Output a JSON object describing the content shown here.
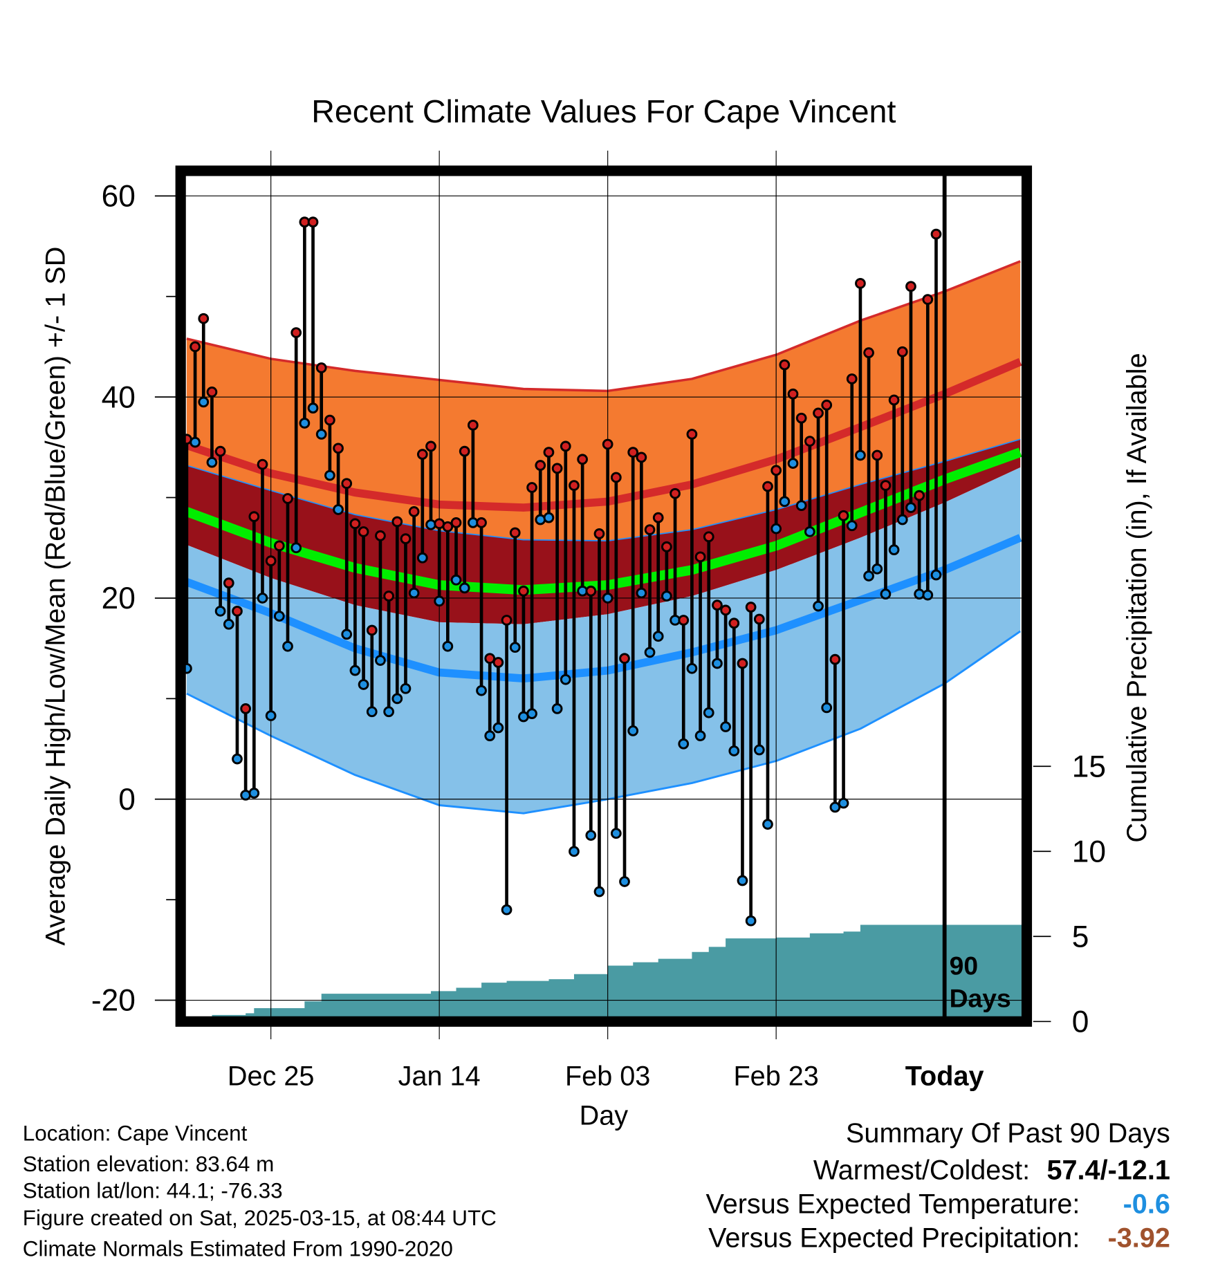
{
  "chart_data": {
    "type": "line",
    "title": "Recent Climate Values For Cape Vincent",
    "xlabel": "Day",
    "ylabel": "Average Daily High/Low/Mean (Red/Blue/Green) +/- 1 SD",
    "y2label": "Cumulative Precipitation (in), If Available",
    "ylim": [
      -20,
      60
    ],
    "y_ticks": [
      60,
      40,
      20,
      0,
      -20
    ],
    "y_minor_ticks": [
      50,
      30,
      10,
      -10
    ],
    "y2_ticks": [
      0,
      5,
      10,
      15
    ],
    "x_range_days_from_today": [
      -91,
      9
    ],
    "x_ticks": [
      {
        "label": "Dec 25",
        "day": -80
      },
      {
        "label": "Jan 14",
        "day": -60
      },
      {
        "label": "Feb 03",
        "day": -40
      },
      {
        "label": "Feb 23",
        "day": -20
      },
      {
        "label": "Today",
        "day": 0
      }
    ],
    "period_label": [
      "90",
      "Days"
    ],
    "grid": true,
    "colors": {
      "high_sd_band": "#F47A30",
      "mean_high": "#D42A2A",
      "mid_band": "#98111A",
      "mean": "#00EE00",
      "low_sd_band": "#85C1E9",
      "mean_low": "#1E90FF",
      "precip": "#4A9BA3",
      "high_point": "#D02020",
      "low_point": "#1E8FE0"
    },
    "normals": {
      "days": [
        -90,
        -80,
        -70,
        -60,
        -50,
        -40,
        -30,
        -20,
        -10,
        0,
        9
      ],
      "high_plus_sd": [
        45.8,
        43.8,
        42.6,
        41.7,
        40.8,
        40.6,
        41.8,
        44.2,
        47.6,
        50.5,
        53.5
      ],
      "mean_high": [
        35.2,
        32.4,
        30.5,
        29.3,
        29.0,
        29.6,
        31.3,
        33.8,
        37.0,
        40.3,
        43.5
      ],
      "high_minus_sd": [
        33.2,
        30.7,
        28.3,
        26.7,
        25.8,
        25.7,
        26.8,
        28.8,
        31.3,
        33.6,
        35.8
      ],
      "mean": [
        28.6,
        25.5,
        23.0,
        21.3,
        20.8,
        21.3,
        22.8,
        25.2,
        28.5,
        31.8,
        34.5
      ],
      "low_plus_sd": [
        25.3,
        22.0,
        19.3,
        17.6,
        17.4,
        18.4,
        20.2,
        22.8,
        26.0,
        29.5,
        33.0
      ],
      "mean_low": [
        21.6,
        18.5,
        15.0,
        12.6,
        12.0,
        12.8,
        14.6,
        16.8,
        19.8,
        22.8,
        26.0
      ],
      "low_minus_sd": [
        10.5,
        6.3,
        2.4,
        -0.6,
        -1.4,
        0.0,
        1.6,
        3.8,
        7.0,
        11.5,
        16.7
      ]
    },
    "first_day": -90,
    "highs": [
      35.8,
      45.0,
      47.8,
      40.5,
      34.6,
      21.5,
      18.7,
      9.0,
      28.1,
      33.3,
      23.7,
      25.2,
      29.9,
      46.4,
      57.4,
      57.4,
      42.9,
      37.7,
      34.9,
      31.4,
      27.4,
      26.6,
      16.8,
      26.2,
      20.2,
      27.6,
      25.9,
      28.6,
      34.3,
      35.1,
      27.4,
      27.1,
      27.5,
      34.6,
      37.2,
      27.5,
      14.0,
      13.6,
      17.8,
      26.5,
      20.7,
      31.0,
      33.2,
      34.5,
      32.9,
      35.1,
      31.2,
      33.8,
      20.7,
      26.4,
      35.3,
      32.0,
      14.0,
      34.5,
      34.0,
      26.8,
      28.0,
      25.1,
      30.4,
      17.8,
      36.3,
      24.1,
      26.1,
      19.3,
      18.8,
      17.5,
      13.5,
      19.1,
      17.9,
      31.1,
      32.7,
      43.2,
      40.3,
      37.9,
      35.6,
      38.4,
      39.2,
      13.9,
      28.2,
      41.8,
      51.3,
      44.4,
      34.2,
      31.2,
      39.7,
      44.5,
      51.0,
      30.2,
      49.7,
      56.2
    ],
    "lows": [
      13.0,
      35.5,
      39.5,
      33.5,
      18.7,
      17.4,
      4.0,
      0.4,
      0.6,
      20.0,
      8.3,
      18.2,
      15.2,
      25.0,
      37.4,
      38.9,
      36.3,
      32.2,
      28.8,
      16.4,
      12.8,
      11.4,
      8.7,
      13.8,
      8.7,
      10.0,
      11.0,
      20.5,
      24.0,
      27.3,
      19.7,
      15.2,
      21.8,
      21.0,
      27.5,
      10.8,
      6.3,
      7.1,
      -11.0,
      15.1,
      8.2,
      8.5,
      27.8,
      28.0,
      9.0,
      11.9,
      -5.2,
      20.7,
      -3.6,
      -9.2,
      20.0,
      -3.4,
      -8.2,
      6.8,
      20.5,
      14.6,
      16.2,
      20.2,
      17.8,
      5.5,
      13.0,
      6.3,
      8.6,
      13.5,
      7.2,
      4.8,
      -8.1,
      -12.1,
      4.9,
      -2.5,
      26.9,
      29.6,
      33.4,
      29.2,
      26.6,
      19.2,
      9.1,
      -0.8,
      -0.4,
      27.2,
      34.2,
      22.2,
      22.9,
      20.4,
      24.8,
      27.8,
      29.0,
      20.4,
      20.3,
      22.3
    ],
    "cumulative_precip": [
      0,
      0,
      0,
      0.1,
      0.1,
      0.1,
      0.1,
      0.2,
      0.5,
      0.5,
      0.5,
      0.5,
      0.5,
      0.5,
      0.9,
      0.9,
      1.35,
      1.35,
      1.35,
      1.35,
      1.35,
      1.35,
      1.35,
      1.35,
      1.35,
      1.35,
      1.35,
      1.35,
      1.35,
      1.5,
      1.5,
      1.5,
      1.7,
      1.7,
      1.7,
      2.0,
      2.0,
      2.0,
      2.1,
      2.1,
      2.1,
      2.1,
      2.1,
      2.2,
      2.2,
      2.2,
      2.5,
      2.5,
      2.5,
      2.5,
      3.0,
      3.0,
      3.0,
      3.2,
      3.2,
      3.2,
      3.4,
      3.4,
      3.4,
      3.4,
      3.8,
      3.8,
      4.1,
      4.1,
      4.6,
      4.6,
      4.6,
      4.6,
      4.6,
      4.6,
      4.65,
      4.65,
      4.65,
      4.65,
      4.9,
      4.9,
      4.9,
      4.9,
      5.0,
      5.0,
      5.4,
      5.4,
      5.4,
      5.4,
      5.4,
      5.4,
      5.4,
      5.4,
      5.4,
      5.4
    ]
  },
  "footer": {
    "location": "Location: Cape Vincent",
    "elevation": "Station elevation: 83.64 m",
    "latlon": "Station lat/lon: 44.1; -76.33",
    "created": "Figure created on Sat, 2025-03-15, at 08:44 UTC",
    "normals": "Climate Normals Estimated From 1990-2020"
  },
  "summary": {
    "heading": "Summary Of Past 90 Days",
    "warmest_coldest_label": "Warmest/Coldest:",
    "warmest_coldest_value": "57.4/-12.1",
    "temp_label": "Versus Expected Temperature:",
    "temp_value": "-0.6",
    "temp_color": "#1E8FE0",
    "precip_label": "Versus Expected Precipitation:",
    "precip_value": "-3.92",
    "precip_color": "#A0522D"
  }
}
